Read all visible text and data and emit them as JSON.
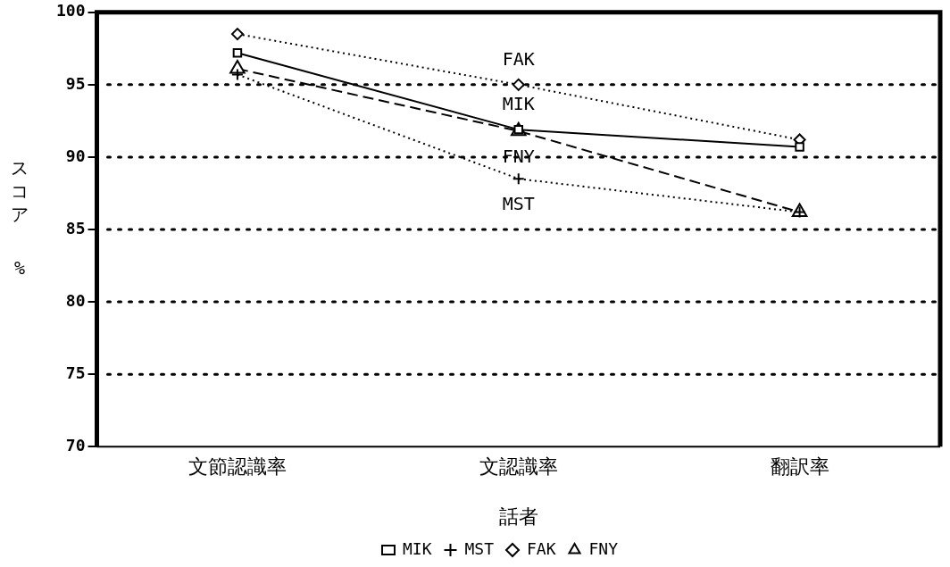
{
  "chart_data": {
    "type": "line",
    "xlabel": "話者",
    "ylabel": "スコア %",
    "categories": [
      "文節認識率",
      "文認識率",
      "翻訳率"
    ],
    "series": [
      {
        "name": "MIK",
        "color": "#000000",
        "marker": "square",
        "line_style": "solid",
        "values": [
          97.2,
          91.9,
          90.7
        ]
      },
      {
        "name": "MST",
        "color": "#000000",
        "marker": "cross",
        "line_style": "dotted",
        "values": [
          95.7,
          88.5,
          86.2
        ]
      },
      {
        "name": "FAK",
        "color": "#000000",
        "marker": "diamond",
        "line_style": "dotted",
        "values": [
          98.5,
          95.0,
          91.2
        ]
      },
      {
        "name": "FNY",
        "color": "#000000",
        "marker": "triangle",
        "line_style": "dashed",
        "values": [
          96.1,
          91.8,
          86.2
        ]
      }
    ],
    "ylim": [
      70,
      100
    ],
    "yticks": [
      70,
      75,
      80,
      85,
      90,
      95,
      100
    ],
    "grid": "y",
    "legend": "bottom"
  }
}
